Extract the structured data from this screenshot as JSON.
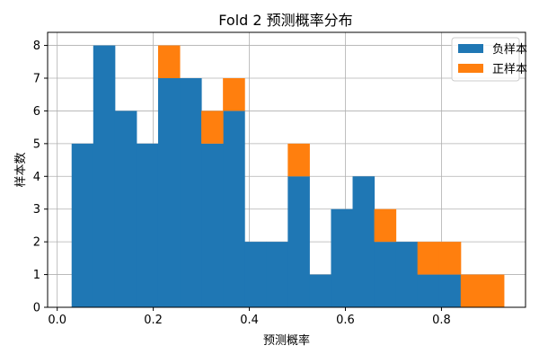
{
  "chart_data": {
    "type": "bar",
    "title": "Fold 2 预测概率分布",
    "xlabel": "预测概率",
    "ylabel": "样本数",
    "xlim": [
      -0.02,
      0.975
    ],
    "ylim": [
      0,
      8.4
    ],
    "x_ticks": [
      "0.0",
      "0.2",
      "0.4",
      "0.6",
      "0.8"
    ],
    "x_tick_values": [
      0.0,
      0.2,
      0.4,
      0.6,
      0.8
    ],
    "y_ticks": [
      "0",
      "1",
      "2",
      "3",
      "4",
      "5",
      "6",
      "7",
      "8"
    ],
    "y_tick_values": [
      0,
      1,
      2,
      3,
      4,
      5,
      6,
      7,
      8
    ],
    "grid": true,
    "stacked": true,
    "legend_position": "top-right",
    "bin_edges": [
      0.03,
      0.075,
      0.12,
      0.165,
      0.21,
      0.255,
      0.3,
      0.345,
      0.39,
      0.435,
      0.48,
      0.525,
      0.57,
      0.615,
      0.66,
      0.705,
      0.75,
      0.795,
      0.84,
      0.885,
      0.93
    ],
    "series": [
      {
        "name": "负样本",
        "color": "#1f77b4",
        "values": [
          5,
          8,
          6,
          5,
          7,
          7,
          5,
          6,
          2,
          2,
          4,
          1,
          3,
          4,
          2,
          2,
          1,
          1,
          0,
          0
        ]
      },
      {
        "name": "正样本",
        "color": "#ff7f0e",
        "values": [
          0,
          0,
          0,
          0,
          1,
          0,
          1,
          1,
          0,
          0,
          1,
          0,
          0,
          0,
          1,
          0,
          1,
          1,
          1,
          1
        ]
      }
    ]
  }
}
